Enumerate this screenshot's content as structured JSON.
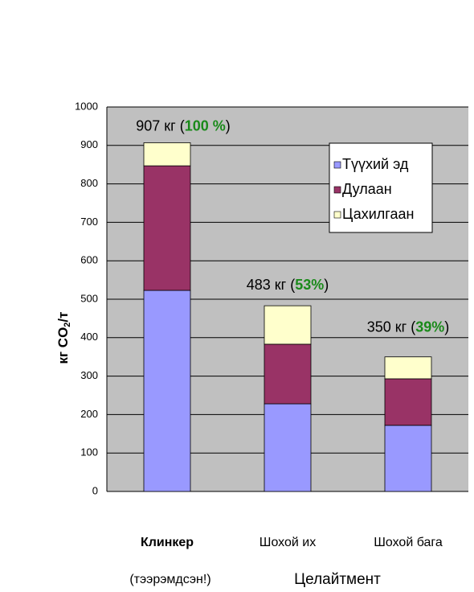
{
  "chart_data": {
    "type": "bar",
    "stacked": true,
    "ylabel": {
      "main": "кг CO",
      "sub": "2",
      "tail": "/т"
    },
    "categories": [
      "Клинкер",
      "Шохой их",
      "Шохой бага"
    ],
    "groups": [
      {
        "label": "(тээрэмдсэн!)",
        "color": "#e0301e"
      },
      {
        "label": "Целайтмент",
        "color": "#000000"
      }
    ],
    "series": [
      {
        "name": "Түүхий эд",
        "color": "#9999ff",
        "values": [
          523,
          228,
          172
        ]
      },
      {
        "name": "Дулаан",
        "color": "#993366",
        "values": [
          324,
          155,
          121
        ]
      },
      {
        "name": "Цахилгаан",
        "color": "#ffffcc",
        "values": [
          60,
          100,
          57
        ]
      }
    ],
    "totals": [
      {
        "prefix": "907 кг (",
        "pct": "100 %",
        "suffix": ")"
      },
      {
        "prefix": "483 кг (",
        "pct": "53%",
        "suffix": ")"
      },
      {
        "prefix": "350 кг (",
        "pct": "39%",
        "suffix": ")"
      }
    ],
    "pct_color": "#1a8a1a",
    "ylim": [
      0,
      1000
    ],
    "yticks": [
      0,
      100,
      200,
      300,
      400,
      500,
      600,
      700,
      800,
      900,
      1000
    ],
    "grid": true,
    "legend": "upper right",
    "plot_bg": "#c0c0c0"
  }
}
